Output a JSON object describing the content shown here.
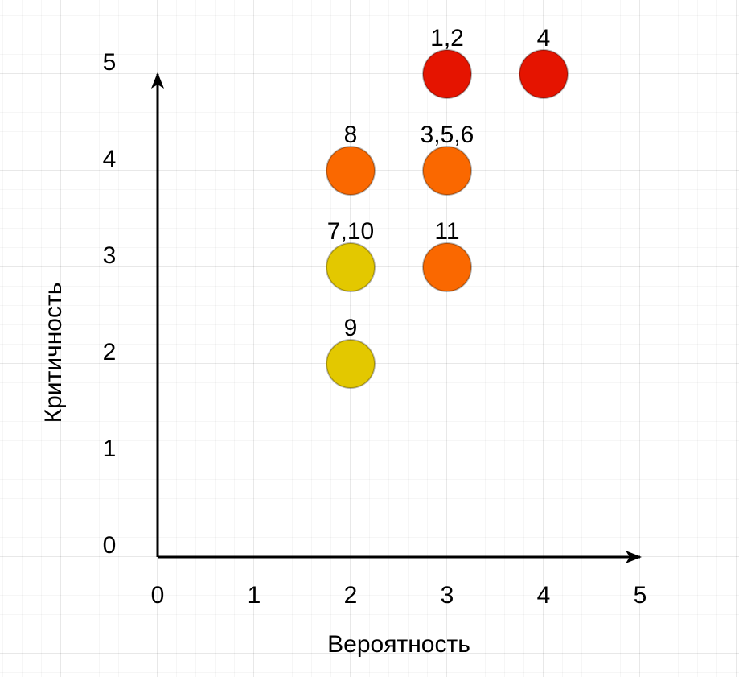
{
  "chart_data": {
    "type": "scatter",
    "title": "",
    "xlabel": "Вероятность",
    "ylabel": "Критичность",
    "xlim": [
      0,
      5
    ],
    "ylim": [
      0,
      5
    ],
    "x_ticks": [
      "0",
      "1",
      "2",
      "3",
      "4",
      "5"
    ],
    "y_ticks": [
      "0",
      "1",
      "2",
      "3",
      "4",
      "5"
    ],
    "grid": true,
    "points": [
      {
        "x": 3,
        "y": 5,
        "label": "1,2",
        "color": "#e51400"
      },
      {
        "x": 4,
        "y": 5,
        "label": "4",
        "color": "#e51400"
      },
      {
        "x": 2,
        "y": 4,
        "label": "8",
        "color": "#fa6800"
      },
      {
        "x": 3,
        "y": 4,
        "label": "3,5,6",
        "color": "#fa6800"
      },
      {
        "x": 2,
        "y": 3,
        "label": "7,10",
        "color": "#e3c800"
      },
      {
        "x": 3,
        "y": 3,
        "label": "11",
        "color": "#fa6800"
      },
      {
        "x": 2,
        "y": 2,
        "label": "9",
        "color": "#e3c800"
      }
    ]
  }
}
